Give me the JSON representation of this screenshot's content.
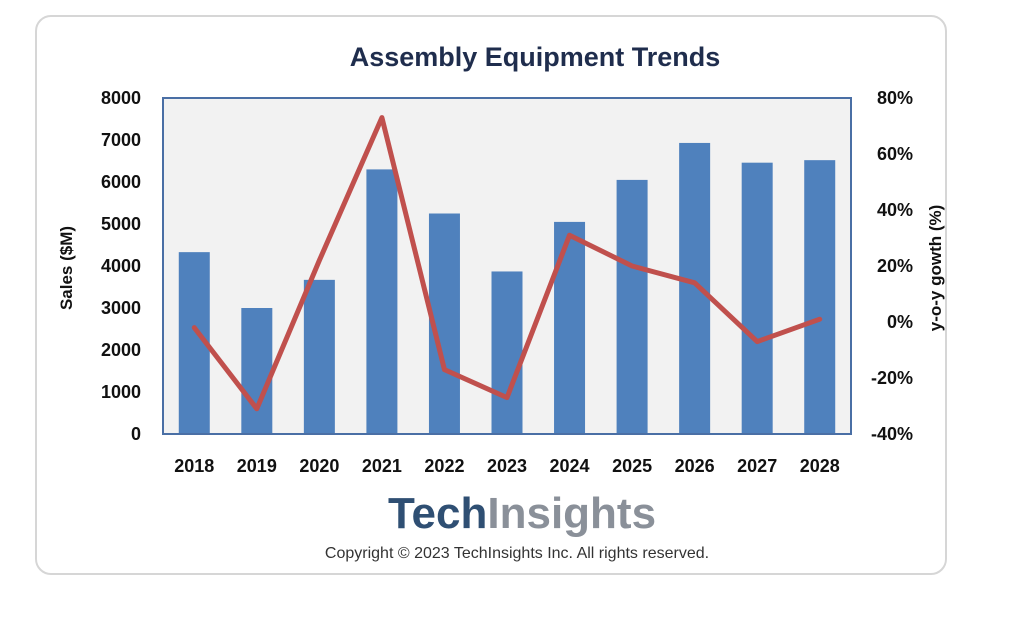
{
  "chart_data": {
    "type": "bar+line",
    "title": "Assembly Equipment Trends",
    "categories": [
      "2018",
      "2019",
      "2020",
      "2021",
      "2022",
      "2023",
      "2024",
      "2025",
      "2026",
      "2027",
      "2028"
    ],
    "series": [
      {
        "name": "Sales ($M)",
        "type": "bar",
        "axis": "left",
        "values": [
          4330,
          3000,
          3670,
          6300,
          5250,
          3870,
          5050,
          6050,
          6930,
          6460,
          6520
        ]
      },
      {
        "name": "y-o-y gowth (%)",
        "type": "line",
        "axis": "right",
        "values": [
          -2,
          -31,
          22,
          73,
          -17,
          -27,
          31,
          20,
          14,
          -7,
          1
        ]
      }
    ],
    "ylabel": "Sales ($M)",
    "y2label": "y-o-y gowth (%)",
    "ylim": [
      0,
      8000
    ],
    "y2lim": [
      -40,
      80
    ],
    "yticks": [
      "0",
      "1000",
      "2000",
      "3000",
      "4000",
      "5000",
      "6000",
      "7000",
      "8000"
    ],
    "y2ticks": [
      "-40%",
      "-20%",
      "0%",
      "20%",
      "40%",
      "60%",
      "80%"
    ],
    "colors": {
      "bar": "#4f81bd",
      "line": "#c0504d",
      "plot_bg": "#f2f2f2",
      "frame": "#4a6fa5"
    }
  },
  "branding": {
    "logo_part1": "Tech",
    "logo_part2": "Insights",
    "logo_color1": "#2f4f73",
    "logo_color2": "#8a9099",
    "copyright": "Copyright © 2023 TechInsights Inc.  All rights reserved."
  }
}
